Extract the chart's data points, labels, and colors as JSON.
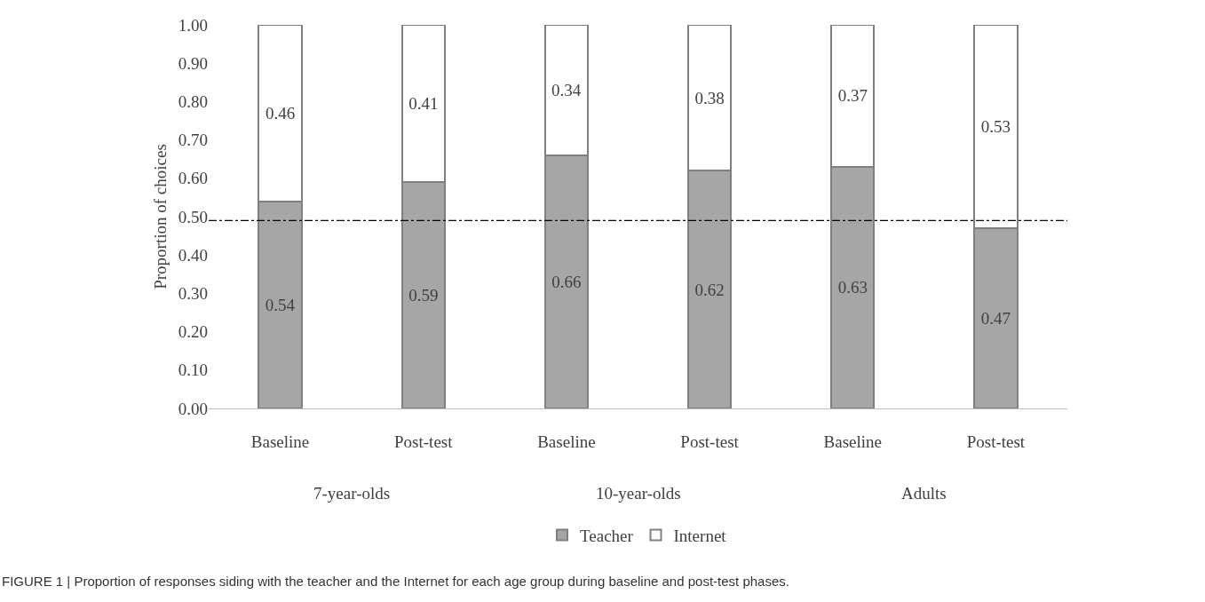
{
  "chart_data": {
    "type": "bar",
    "stacked": true,
    "ylabel": "Proportion of choices",
    "categories": [
      "Baseline",
      "Post-test",
      "Baseline",
      "Post-test",
      "Baseline",
      "Post-test"
    ],
    "series": [
      {
        "name": "Teacher",
        "color": "#a6a6a6",
        "values": [
          0.54,
          0.59,
          0.66,
          0.62,
          0.63,
          0.47
        ]
      },
      {
        "name": "Internet",
        "color": "#ffffff",
        "values": [
          0.46,
          0.41,
          0.34,
          0.38,
          0.37,
          0.53
        ]
      }
    ],
    "data_labels": true,
    "ylim": [
      0,
      1
    ],
    "yticks": [
      {
        "value": 0,
        "label": "0.00"
      },
      {
        "value": 0.1,
        "label": "0.10"
      },
      {
        "value": 0.2,
        "label": "0.20"
      },
      {
        "value": 0.3,
        "label": "0.30"
      },
      {
        "value": 0.4,
        "label": "0.40"
      },
      {
        "value": 0.5,
        "label": "0.50"
      },
      {
        "value": 0.6,
        "label": "0.60"
      },
      {
        "value": 0.7,
        "label": "0.70"
      },
      {
        "value": 0.8,
        "label": "0.80"
      },
      {
        "value": 0.9,
        "label": "0.90"
      },
      {
        "value": 1,
        "label": "1.00"
      }
    ],
    "ref_lines": [
      {
        "axis": "y",
        "value": 0.49,
        "line_style": "dashed",
        "color": "#000000"
      }
    ],
    "grid": false,
    "legend": "bottom",
    "annotations": [
      "7-year-olds",
      "10-year-olds",
      "Adults",
      "FIGURE 1 | Proportion of responses siding with the teacher and the Internet for each age group during baseline and post-test phases."
    ]
  }
}
